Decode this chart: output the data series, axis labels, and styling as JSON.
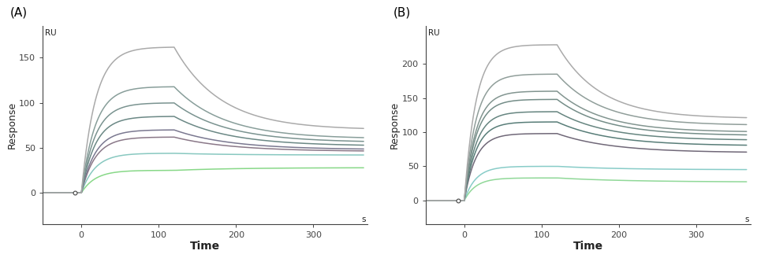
{
  "panel_A": {
    "label": "(A)",
    "ylabel": "Response",
    "xlabel": "Time",
    "ylabel_top": "RU",
    "xlabel_right": "s",
    "xlim": [
      -50,
      370
    ],
    "ylim": [
      -35,
      185
    ],
    "yticks": [
      0,
      50,
      100,
      150
    ],
    "xticks": [
      0,
      100,
      200,
      300
    ],
    "curves": [
      {
        "peak": 162,
        "plateau": 70,
        "tau_a": 18,
        "tau_d": 60,
        "color": "#aaaaaa"
      },
      {
        "peak": 118,
        "plateau": 60,
        "tau_a": 18,
        "tau_d": 65,
        "color": "#889e9a"
      },
      {
        "peak": 100,
        "plateau": 56,
        "tau_a": 18,
        "tau_d": 68,
        "color": "#7a9390"
      },
      {
        "peak": 85,
        "plateau": 52,
        "tau_a": 18,
        "tau_d": 70,
        "color": "#6b8885"
      },
      {
        "peak": 70,
        "plateau": 48,
        "tau_a": 18,
        "tau_d": 72,
        "color": "#7a7890"
      },
      {
        "peak": 62,
        "plateau": 46,
        "tau_a": 18,
        "tau_d": 74,
        "color": "#8a7888"
      },
      {
        "peak": 44,
        "plateau": 42,
        "tau_a": 18,
        "tau_d": 76,
        "color": "#88c8c0"
      },
      {
        "peak": 25,
        "plateau": 28,
        "tau_a": 18,
        "tau_d": 80,
        "color": "#88d888"
      }
    ]
  },
  "panel_B": {
    "label": "(B)",
    "ylabel": "Response",
    "xlabel": "Time",
    "ylabel_top": "RU",
    "xlabel_right": "s",
    "xlim": [
      -50,
      370
    ],
    "ylim": [
      -35,
      255
    ],
    "yticks": [
      0,
      50,
      100,
      150,
      200
    ],
    "xticks": [
      0,
      100,
      200,
      300
    ],
    "curves": [
      {
        "peak": 228,
        "plateau": 120,
        "tau_a": 15,
        "tau_d": 55,
        "color": "#aaaaaa"
      },
      {
        "peak": 185,
        "plateau": 110,
        "tau_a": 15,
        "tau_d": 58,
        "color": "#909e9a"
      },
      {
        "peak": 160,
        "plateau": 100,
        "tau_a": 15,
        "tau_d": 60,
        "color": "#829590"
      },
      {
        "peak": 148,
        "plateau": 95,
        "tau_a": 15,
        "tau_d": 62,
        "color": "#748d88"
      },
      {
        "peak": 130,
        "plateau": 88,
        "tau_a": 15,
        "tau_d": 65,
        "color": "#668580"
      },
      {
        "peak": 115,
        "plateau": 80,
        "tau_a": 15,
        "tau_d": 68,
        "color": "#587d78"
      },
      {
        "peak": 98,
        "plateau": 70,
        "tau_a": 15,
        "tau_d": 70,
        "color": "#706878"
      },
      {
        "peak": 50,
        "plateau": 45,
        "tau_a": 15,
        "tau_d": 80,
        "color": "#88ccc8"
      },
      {
        "peak": 33,
        "plateau": 27,
        "tau_a": 15,
        "tau_d": 90,
        "color": "#90d898"
      }
    ]
  },
  "bg_color": "#ffffff",
  "spine_color": "#444444",
  "tick_color": "#444444",
  "label_color": "#222222",
  "linewidth": 1.1
}
